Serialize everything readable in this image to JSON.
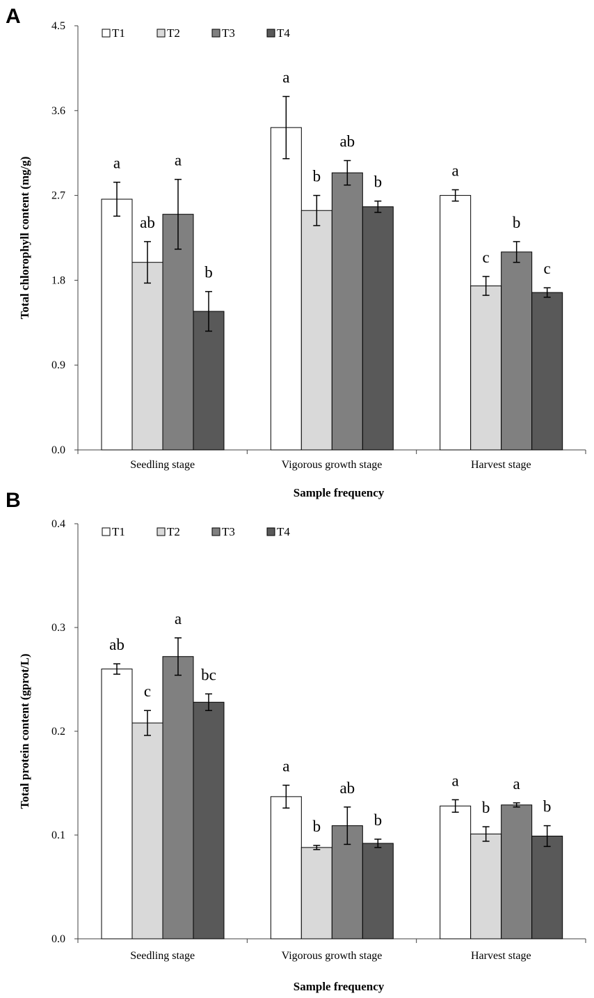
{
  "chart_data": [
    {
      "type": "bar",
      "panel": "A",
      "title": "",
      "xlabel": "Sample frequency",
      "ylabel": "Total chlorophyll content (mg/g)",
      "ylim": [
        0,
        4.5
      ],
      "yticks": [
        "0.0",
        "0.9",
        "1.8",
        "2.7",
        "3.6",
        "4.5"
      ],
      "categories": [
        "Seedling stage",
        "Vigorous growth stage",
        "Harvest stage"
      ],
      "series": [
        {
          "name": "T1",
          "color": "#ffffff",
          "values": [
            2.66,
            3.42,
            2.7
          ],
          "errors": [
            0.18,
            0.33,
            0.06
          ],
          "labels": [
            "a",
            "a",
            "a"
          ]
        },
        {
          "name": "T2",
          "color": "#d9d9d9",
          "values": [
            1.99,
            2.54,
            1.74
          ],
          "errors": [
            0.22,
            0.16,
            0.1
          ],
          "labels": [
            "ab",
            "b",
            "c"
          ]
        },
        {
          "name": "T3",
          "color": "#808080",
          "values": [
            2.5,
            2.94,
            2.1
          ],
          "errors": [
            0.37,
            0.13,
            0.11
          ],
          "labels": [
            "a",
            "ab",
            "b"
          ]
        },
        {
          "name": "T4",
          "color": "#595959",
          "values": [
            1.47,
            2.58,
            1.67
          ],
          "errors": [
            0.21,
            0.06,
            0.05
          ],
          "labels": [
            "b",
            "b",
            "c"
          ]
        }
      ],
      "legend_position": "top-left"
    },
    {
      "type": "bar",
      "panel": "B",
      "title": "",
      "xlabel": "Sample frequency",
      "ylabel": "Total protein content (gprot/L)",
      "ylim": [
        0,
        0.4
      ],
      "yticks": [
        "0.0",
        "0.1",
        "0.2",
        "0.3",
        "0.4"
      ],
      "categories": [
        "Seedling stage",
        "Vigorous growth stage",
        "Harvest stage"
      ],
      "series": [
        {
          "name": "T1",
          "color": "#ffffff",
          "values": [
            0.26,
            0.137,
            0.128
          ],
          "errors": [
            0.005,
            0.011,
            0.006
          ],
          "labels": [
            "ab",
            "a",
            "a"
          ]
        },
        {
          "name": "T2",
          "color": "#d9d9d9",
          "values": [
            0.208,
            0.088,
            0.101
          ],
          "errors": [
            0.012,
            0.002,
            0.007
          ],
          "labels": [
            "c",
            "b",
            "b"
          ]
        },
        {
          "name": "T3",
          "color": "#808080",
          "values": [
            0.272,
            0.109,
            0.129
          ],
          "errors": [
            0.018,
            0.018,
            0.002
          ],
          "labels": [
            "a",
            "ab",
            "a"
          ]
        },
        {
          "name": "T4",
          "color": "#595959",
          "values": [
            0.228,
            0.092,
            0.099
          ],
          "errors": [
            0.008,
            0.004,
            0.01
          ],
          "labels": [
            "bc",
            "b",
            "b"
          ]
        }
      ],
      "legend_position": "top-left"
    }
  ]
}
